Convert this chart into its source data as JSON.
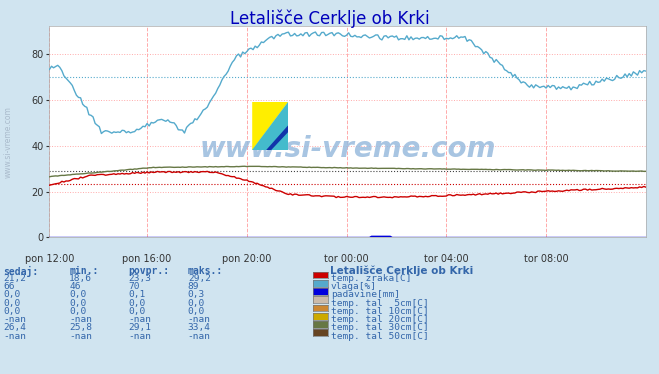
{
  "title": "Letališče Cerklje ob Krki",
  "background_color": "#d0e4f0",
  "plot_bg_color": "#ffffff",
  "x_labels": [
    "pon 12:00",
    "pon 16:00",
    "pon 20:00",
    "tor 00:00",
    "tor 04:00",
    "tor 08:00"
  ],
  "x_ticks_norm": [
    0.0,
    0.1667,
    0.3333,
    0.5,
    0.6667,
    0.8333
  ],
  "total_points": 288,
  "ylim": [
    0,
    92
  ],
  "yticks": [
    0,
    20,
    40,
    60,
    80
  ],
  "grid_color": "#ffaaaa",
  "avg_temp": 23.3,
  "avg_vlaga": 70.0,
  "avg_tal30": 29.1,
  "temp_color": "#cc0000",
  "vlaga_color": "#55aacc",
  "padavine_color": "#0000dd",
  "tal30_color": "#667744",
  "watermark_color": "#99bbdd",
  "text_color": "#3366aa",
  "table_headers": [
    "sedaj:",
    "min.:",
    "povpr.:",
    "maks.:"
  ],
  "table_rows": [
    [
      "21,2",
      "18,6",
      "23,3",
      "29,2",
      "#cc0000",
      "temp. zraka[C]"
    ],
    [
      "66",
      "46",
      "70",
      "89",
      "#55aacc",
      "vlaga[%]"
    ],
    [
      "0,0",
      "0,0",
      "0,1",
      "0,3",
      "#0000dd",
      "padavine[mm]"
    ],
    [
      "0,0",
      "0,0",
      "0,0",
      "0,0",
      "#ccbbaa",
      "temp. tal  5cm[C]"
    ],
    [
      "0,0",
      "0,0",
      "0,0",
      "0,0",
      "#cc8833",
      "temp. tal 10cm[C]"
    ],
    [
      "-nan",
      "-nan",
      "-nan",
      "-nan",
      "#ccaa00",
      "temp. tal 20cm[C]"
    ],
    [
      "26,4",
      "25,8",
      "29,1",
      "33,4",
      "#667744",
      "temp. tal 30cm[C]"
    ],
    [
      "-nan",
      "-nan",
      "-nan",
      "-nan",
      "#664422",
      "temp. tal 50cm[C]"
    ]
  ],
  "station_label": "Letališče Cerklje ob Krki"
}
